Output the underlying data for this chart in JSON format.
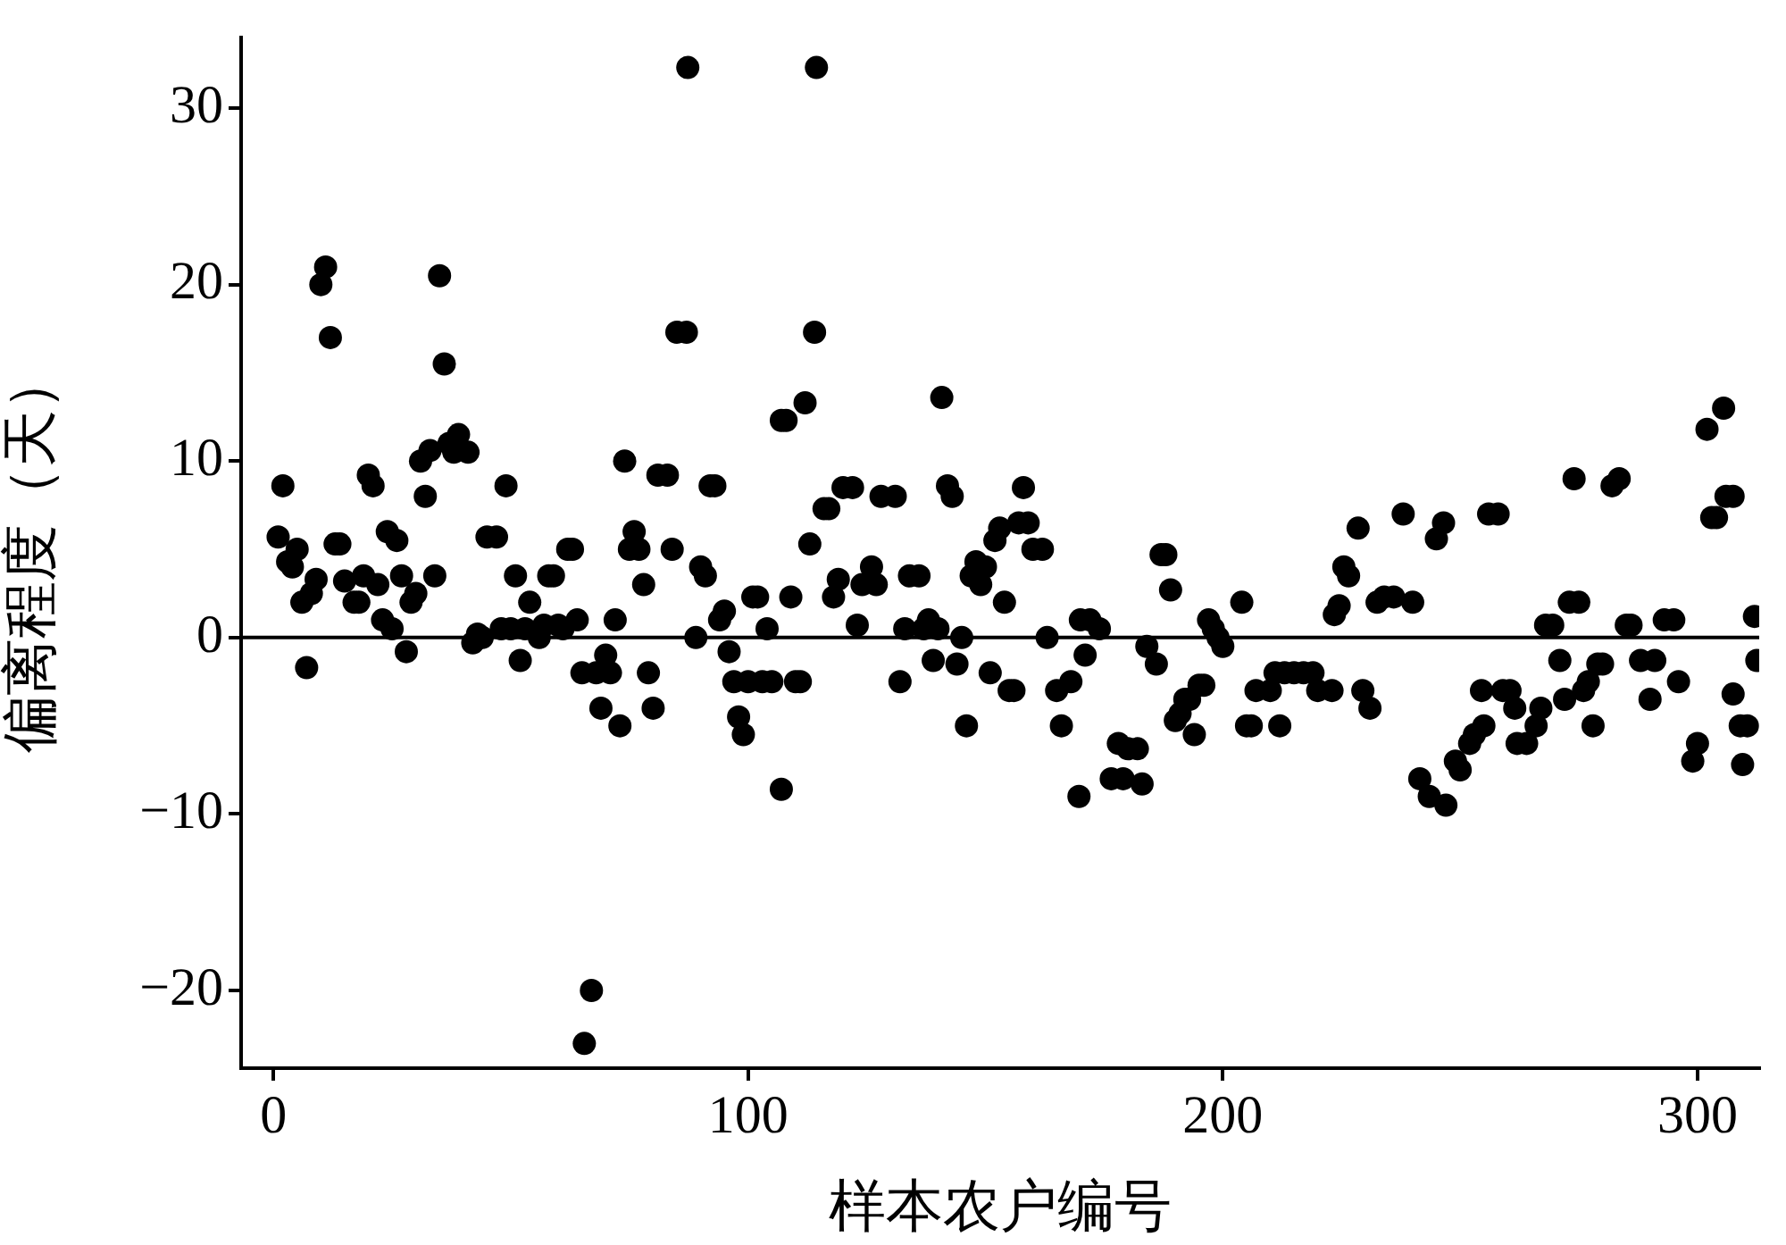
{
  "chart_data": {
    "type": "scatter",
    "xlabel": "样本农户编号",
    "ylabel": "偏离程度（天）",
    "xlim": [
      -6.8,
      313
    ],
    "xticks": [
      0,
      100,
      200,
      300
    ],
    "ylim": [
      -24.4,
      34
    ],
    "yticks": [
      -20,
      -10,
      0,
      10,
      20,
      30
    ],
    "marker": "circle",
    "legend": false,
    "ref_lines": [
      {
        "axis": "y",
        "value": 0,
        "color": "#000000"
      }
    ],
    "series": [
      {
        "color": "#000000",
        "x": [
          1,
          2,
          3,
          4,
          5,
          6,
          7,
          8,
          9,
          10,
          11,
          12,
          13,
          14,
          15,
          17,
          18,
          19,
          20,
          21,
          22,
          23,
          24,
          25,
          26,
          27,
          28,
          29,
          30,
          31,
          32,
          33,
          34,
          35,
          36,
          37,
          38,
          39,
          41,
          42,
          43,
          44,
          45,
          47,
          48,
          49,
          50,
          51,
          52,
          53,
          54,
          56,
          57,
          58,
          59,
          60,
          61,
          62,
          63,
          64,
          65,
          65.5,
          67,
          68,
          69,
          70,
          71,
          72,
          73,
          74,
          75,
          76,
          77,
          78,
          79,
          80,
          81,
          83,
          84,
          85,
          87,
          87.3,
          89,
          90,
          91,
          92,
          93,
          94,
          95,
          96,
          97,
          98,
          99,
          100,
          101,
          102,
          103,
          104,
          105,
          107,
          107,
          108,
          109,
          110,
          111,
          112,
          113,
          114,
          114.4,
          116,
          117,
          118,
          119,
          120,
          122,
          123,
          124,
          126,
          127,
          128,
          131,
          132,
          133,
          134,
          136,
          137,
          138,
          139,
          140,
          140.8,
          142,
          143,
          144,
          145,
          146,
          147,
          148,
          149,
          150,
          151,
          152,
          153,
          154,
          155,
          156,
          157,
          158,
          159,
          160,
          162,
          163,
          165,
          166,
          168,
          169.7,
          170,
          171,
          172,
          174,
          176.5,
          178,
          179,
          180,
          182,
          183,
          184,
          186,
          187,
          188,
          189,
          190,
          191,
          192,
          193,
          194,
          195,
          196,
          197,
          198,
          199,
          200,
          204,
          205,
          206,
          207,
          210,
          211,
          212,
          213,
          215,
          217,
          219,
          220,
          223,
          223.5,
          224.5,
          225.5,
          226.5,
          228.5,
          229.5,
          231,
          232.5,
          234,
          236,
          238,
          240,
          241.5,
          243.5,
          245,
          246.5,
          247,
          249,
          250,
          252,
          253,
          254.5,
          255,
          256,
          258,
          259,
          260.5,
          261.5,
          262,
          264,
          266,
          267,
          268,
          269.5,
          271,
          272,
          273,
          274,
          275,
          276,
          277,
          278,
          279,
          280,
          282,
          283.5,
          285,
          286,
          288,
          290,
          291,
          293,
          295,
          296,
          299,
          300,
          302,
          303,
          304,
          305.5,
          306,
          307.5,
          307.5,
          309,
          309.5,
          310.5,
          312,
          312.5
        ],
        "values": [
          5.7,
          8.6,
          4.3,
          4,
          5,
          2,
          -1.7,
          2.5,
          3.3,
          20,
          21,
          17,
          5.3,
          5.3,
          3.2,
          2,
          2,
          3.5,
          9.2,
          8.6,
          3,
          1,
          6,
          0.5,
          5.5,
          3.5,
          -0.8,
          2,
          2.5,
          10,
          8,
          10.6,
          3.5,
          20.5,
          15.5,
          11,
          10.5,
          11.5,
          10.5,
          -0.3,
          0.2,
          0,
          5.7,
          5.7,
          0.5,
          8.6,
          0.5,
          3.5,
          -1.3,
          0.5,
          2,
          0,
          0.7,
          3.5,
          3.5,
          0.7,
          0.5,
          5,
          5,
          1,
          -2,
          -23,
          -20,
          -2,
          -4,
          -1,
          -2,
          1,
          -5,
          10,
          5,
          6,
          5,
          3,
          -2,
          -4,
          9.2,
          9.2,
          5,
          17.3,
          17.3,
          32.3,
          0,
          4,
          3.5,
          8.6,
          8.6,
          1,
          1.5,
          -0.8,
          -2.5,
          -4.5,
          -5.5,
          -2.5,
          2.3,
          2.3,
          -2.5,
          0.5,
          -2.5,
          -8.6,
          12.3,
          12.3,
          2.3,
          -2.5,
          -2.5,
          13.3,
          5.3,
          17.3,
          32.3,
          7.3,
          7.3,
          2.3,
          3.3,
          8.5,
          8.5,
          0.7,
          3,
          4,
          3,
          8,
          8,
          -2.5,
          0.5,
          3.5,
          3.5,
          0.5,
          1,
          -1.3,
          0.5,
          13.6,
          8.6,
          8,
          -1.5,
          0,
          -5,
          3.5,
          4.3,
          3,
          4,
          -2,
          5.5,
          6.2,
          2,
          -3,
          -3,
          6.5,
          8.5,
          6.5,
          5,
          5,
          0,
          -3,
          -5,
          -2.5,
          -9,
          1,
          -1,
          1,
          0.5,
          -8,
          -6,
          -8,
          -6.3,
          -6.3,
          -8.3,
          -0.5,
          -1.5,
          4.7,
          4.7,
          2.7,
          -4.7,
          -4.3,
          -3.5,
          -3.5,
          -5.5,
          -2.7,
          -2.7,
          1,
          0.5,
          0,
          -0.5,
          2,
          -5,
          -5,
          -3,
          -3,
          -2,
          -5,
          -2,
          -2,
          -2,
          -2,
          -3,
          -3,
          1.3,
          1.8,
          4,
          3.5,
          6.2,
          -3,
          -4,
          2,
          2.3,
          2.3,
          7,
          2,
          -8,
          -9,
          5.6,
          6.5,
          -9.5,
          -7,
          -7.5,
          -6,
          -5.5,
          -3,
          -5,
          7,
          7,
          -3,
          -3,
          -4,
          -6,
          -6,
          -5,
          -4,
          0.7,
          0.7,
          -1.3,
          -3.5,
          2,
          9,
          2,
          -3,
          -2.5,
          -5,
          -1.5,
          -1.5,
          8.6,
          9,
          0.7,
          0.7,
          -1.3,
          -3.5,
          -1.3,
          1,
          1,
          -2.5,
          -7,
          -6,
          11.8,
          6.8,
          6.8,
          13,
          8,
          8,
          -3.2,
          -5,
          -7.2,
          -5,
          1.2,
          -1.3
        ]
      }
    ]
  }
}
